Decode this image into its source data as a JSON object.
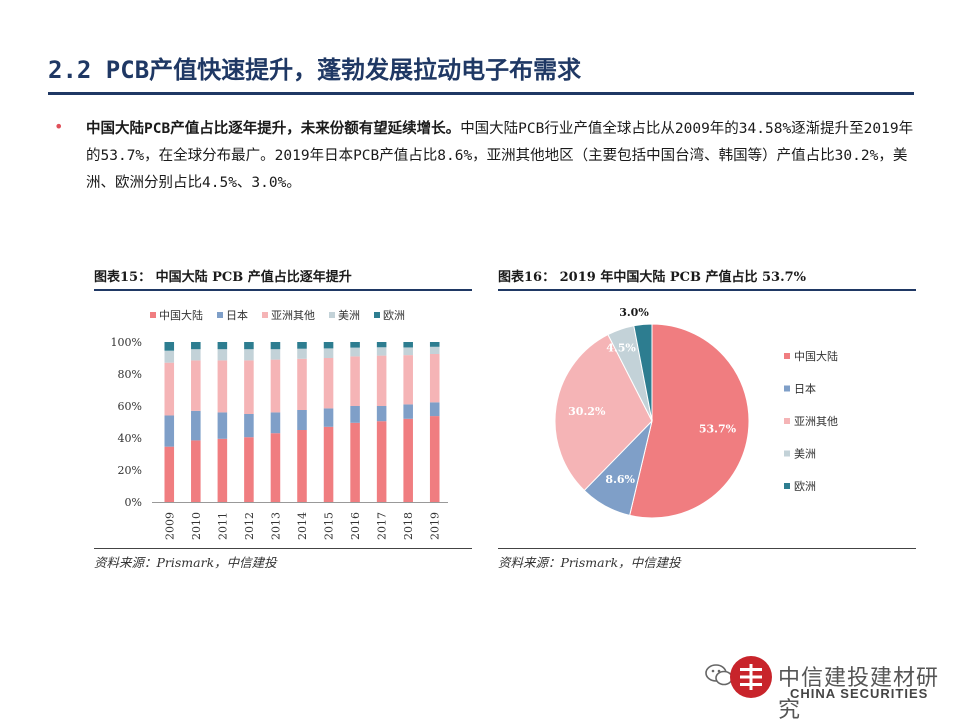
{
  "header": {
    "title": "2.2 PCB产值快速提升，蓬勃发展拉动电子布需求"
  },
  "bullet": {
    "lead": "中国大陆PCB产值占比逐年提升，未来份额有望延续增长。",
    "body": "中国大陆PCB行业产值全球占比从2009年的34.58%逐渐提升至2019年的53.7%，在全球分布最广。2019年日本PCB产值占比8.6%，亚洲其他地区（主要包括中国台湾、韩国等）产值占比30.2%，美洲、欧洲分别占比4.5%、3.0%。"
  },
  "panel_left": {
    "title": "图表15：  中国大陆 PCB 产值占比逐年提升",
    "source": "资料来源：Prismark，中信建投"
  },
  "panel_right": {
    "title": "图表16：  2019 年中国大陆 PCB 产值占比 53.7%",
    "source": "资料来源：Prismark，中信建投"
  },
  "footer": {
    "brand": "中信建投建材研究",
    "sub": "CHINA SECURITIES"
  },
  "chart_data": [
    {
      "type": "bar",
      "stacked": true,
      "categories": [
        "2009",
        "2010",
        "2011",
        "2012",
        "2013",
        "2014",
        "2015",
        "2016",
        "2017",
        "2018",
        "2019"
      ],
      "ylim": [
        0,
        100
      ],
      "yticks": [
        "0%",
        "20%",
        "40%",
        "60%",
        "80%",
        "100%"
      ],
      "legend_position": "top",
      "series": [
        {
          "name": "中国大陆",
          "color": "#f07d80",
          "values": [
            34.58,
            38.5,
            39.5,
            40.5,
            43,
            45,
            47,
            49.5,
            50.5,
            52,
            53.7
          ]
        },
        {
          "name": "日本",
          "color": "#7f9fc8",
          "values": [
            19.5,
            18.5,
            16.5,
            14.5,
            13,
            12.5,
            11.5,
            10.5,
            9.5,
            9,
            8.6
          ]
        },
        {
          "name": "亚洲其他",
          "color": "#f5b4b6",
          "values": [
            33,
            31.5,
            32.5,
            33.5,
            33,
            32,
            31.5,
            31,
            31.5,
            30.8,
            30.2
          ]
        },
        {
          "name": "美洲",
          "color": "#c3d2d8",
          "values": [
            7.5,
            7,
            7,
            7,
            6.5,
            6.3,
            6,
            5.5,
            5.2,
            4.8,
            4.5
          ]
        },
        {
          "name": "欧洲",
          "color": "#2d7d90",
          "values": [
            5.42,
            4.5,
            4.5,
            4.5,
            4.5,
            4.2,
            4,
            3.5,
            3.3,
            3.4,
            3.0
          ]
        }
      ]
    },
    {
      "type": "pie",
      "legend_position": "right",
      "slices": [
        {
          "name": "中国大陆",
          "value": 53.7,
          "label": "53.7%",
          "color": "#f07d80"
        },
        {
          "name": "日本",
          "value": 8.6,
          "label": "8.6%",
          "color": "#7f9fc8"
        },
        {
          "name": "亚洲其他",
          "value": 30.2,
          "label": "30.2%",
          "color": "#f5b4b6"
        },
        {
          "name": "美洲",
          "value": 4.5,
          "label": "4.5%",
          "color": "#c3d2d8"
        },
        {
          "name": "欧洲",
          "value": 3.0,
          "label": "3.0%",
          "color": "#2d7d90"
        }
      ]
    }
  ]
}
